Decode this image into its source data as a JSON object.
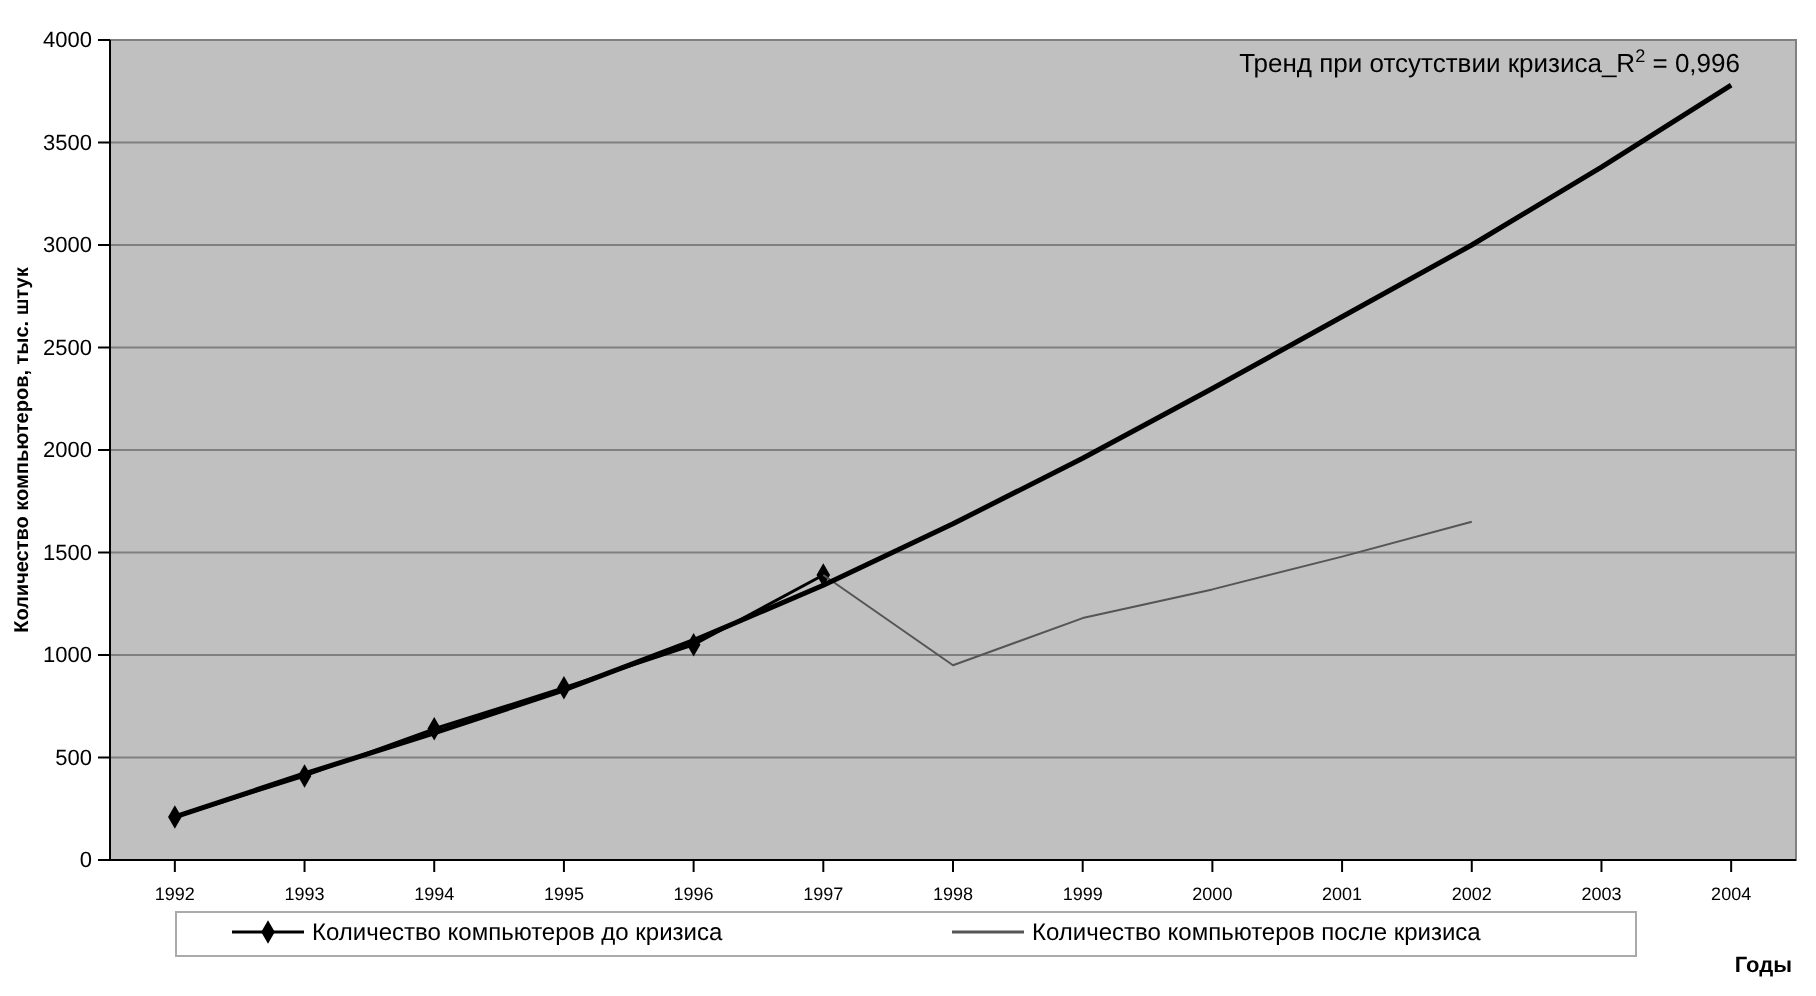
{
  "chart_data": {
    "type": "line",
    "xlabel": "Годы",
    "ylabel": "Количество компьютеров, тыс. штук",
    "categories": [
      "1992",
      "1993",
      "1994",
      "1995",
      "1996",
      "1997",
      "1998",
      "1999",
      "2000",
      "2001",
      "2002",
      "2003",
      "2004"
    ],
    "series": [
      {
        "name": "Количество компьютеров до кризиса",
        "color": "#000000",
        "marker": "diamond",
        "values": [
          210,
          410,
          640,
          840,
          1050,
          1390,
          null,
          null,
          null,
          null,
          null,
          null,
          null
        ]
      },
      {
        "name": "Количество компьютеров после кризиса",
        "color": "#555555",
        "marker": "none",
        "values": [
          null,
          null,
          null,
          null,
          null,
          1390,
          950,
          1180,
          1320,
          1480,
          1650,
          null,
          null
        ]
      },
      {
        "color": "#000000",
        "marker": "none",
        "values": [
          210,
          420,
          620,
          830,
          1070,
          1340,
          1640,
          1960,
          2300,
          2650,
          3000,
          3380,
          3780
        ]
      }
    ],
    "annotations": [
      "Тренд при отсутствии кризиса_R$^{2}$ = 0,996"
    ],
    "ylim": [
      0,
      4000
    ],
    "yticks": [
      0,
      500,
      1000,
      1500,
      2000,
      2500,
      3000,
      3500,
      4000
    ],
    "grid": "y",
    "legend": "bottom"
  }
}
